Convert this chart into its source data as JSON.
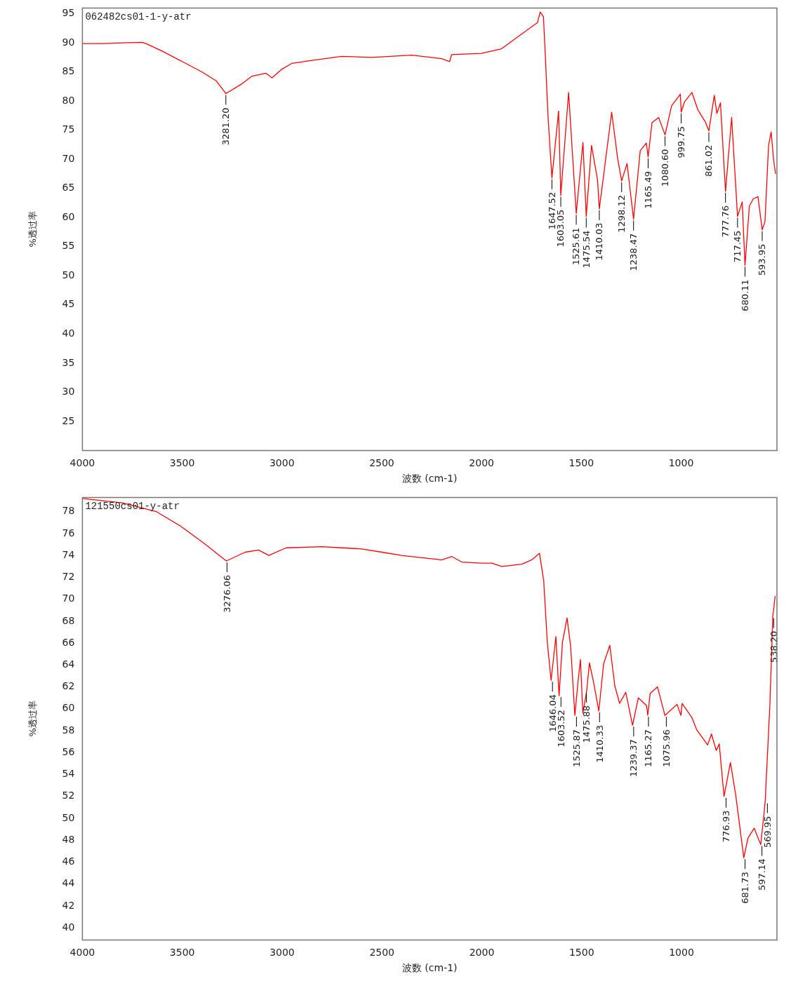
{
  "chart_data": [
    {
      "type": "line",
      "title": "062482cs01-1-y-atr",
      "xlabel": "波数 (cm-1)",
      "ylabel": "%透过率",
      "xlim": [
        4000,
        520
      ],
      "xticks": [
        4000,
        3500,
        3000,
        2500,
        2000,
        1500,
        1000
      ],
      "ylim": [
        20,
        96
      ],
      "yticks": [
        25,
        30,
        35,
        40,
        45,
        50,
        55,
        60,
        65,
        70,
        75,
        80,
        85,
        90,
        95
      ],
      "series": [
        {
          "color": "#ff0000",
          "x": [
            4000,
            3900,
            3800,
            3700,
            3676,
            3600,
            3500,
            3400,
            3330,
            3281.2,
            3200,
            3150,
            3080,
            3050,
            3000,
            2950,
            2850,
            2700,
            2550,
            2350,
            2200,
            2160,
            2150,
            2000,
            1900,
            1800,
            1720,
            1706,
            1690,
            1680,
            1667,
            1647.52,
            1614,
            1603.05,
            1564,
            1525.61,
            1492,
            1475.54,
            1449,
            1419,
            1410.03,
            1348,
            1318,
            1298.12,
            1271,
            1238.47,
            1205,
            1174,
            1165.49,
            1146,
            1113,
            1080.6,
            1048,
            1004,
            999.75,
            983,
            946,
            916,
            880,
            861.02,
            834,
            821,
            803,
            777.76,
            747,
            717.45,
            694,
            680.11,
            658,
            639,
            615,
            593.95,
            580,
            562,
            549,
            537,
            527
          ],
          "values": [
            89.9,
            89.9,
            90,
            90.1,
            89.8,
            88.6,
            86.8,
            85,
            83.5,
            81.3,
            83,
            84.3,
            84.8,
            84,
            85.5,
            86.5,
            87,
            87.7,
            87.5,
            87.9,
            87.3,
            86.8,
            88,
            88.2,
            89,
            91.5,
            93.5,
            95.3,
            94.5,
            87.4,
            77.4,
            66.8,
            78.3,
            63.8,
            81.5,
            60.7,
            72.9,
            60.2,
            72.4,
            66.5,
            61.5,
            78.1,
            70.1,
            66.3,
            69.3,
            59.7,
            71.5,
            72.8,
            70.4,
            76.3,
            77.2,
            74.2,
            79.2,
            81.2,
            78.1,
            79.9,
            81.5,
            78.5,
            76.5,
            74.9,
            81,
            77.9,
            79.7,
            64.5,
            77.2,
            60.2,
            62.7,
            51.8,
            62,
            63.2,
            63.6,
            57.9,
            59.3,
            72.4,
            74.7,
            70,
            67.5
          ]
        }
      ],
      "annotations": [
        {
          "text": "3281.20",
          "x": 3281.2,
          "y": 81.3
        },
        {
          "text": "1647.52",
          "x": 1647.52,
          "y": 66.8
        },
        {
          "text": "1603.05",
          "x": 1603.05,
          "y": 63.8
        },
        {
          "text": "1525.61",
          "x": 1525.61,
          "y": 60.7
        },
        {
          "text": "1475.54",
          "x": 1475.54,
          "y": 60.2
        },
        {
          "text": "1410.03",
          "x": 1410.03,
          "y": 61.5
        },
        {
          "text": "1298.12",
          "x": 1298.12,
          "y": 66.3
        },
        {
          "text": "1238.47",
          "x": 1238.47,
          "y": 59.7
        },
        {
          "text": "1165.49",
          "x": 1165.49,
          "y": 70.4
        },
        {
          "text": "1080.60",
          "x": 1080.6,
          "y": 74.2
        },
        {
          "text": "999.75",
          "x": 999.75,
          "y": 78.1
        },
        {
          "text": "861.02",
          "x": 861.02,
          "y": 74.9
        },
        {
          "text": "777.76",
          "x": 777.76,
          "y": 64.5
        },
        {
          "text": "717.45",
          "x": 717.45,
          "y": 60.2
        },
        {
          "text": "680.11",
          "x": 680.11,
          "y": 51.8
        },
        {
          "text": "593.95",
          "x": 593.95,
          "y": 57.9
        }
      ]
    },
    {
      "type": "line",
      "title": "121550cs01-y-atr",
      "xlabel": "波数 (cm-1)",
      "ylabel": "%透过率",
      "xlim": [
        4000,
        522
      ],
      "xticks": [
        4000,
        3500,
        3000,
        2500,
        2000,
        1500,
        1000
      ],
      "ylim": [
        38.9,
        79.3
      ],
      "yticks": [
        40,
        42,
        44,
        46,
        48,
        50,
        52,
        54,
        56,
        58,
        60,
        62,
        64,
        66,
        68,
        70,
        72,
        74,
        76,
        78
      ],
      "series": [
        {
          "color": "#ff0000",
          "x": [
            4000,
            3800,
            3629,
            3510,
            3390,
            3279,
            3186,
            3118,
            3066,
            2980,
            2800,
            2700,
            2600,
            2500,
            2400,
            2300,
            2200,
            2150,
            2100,
            2000,
            1950,
            1900,
            1800,
            1750,
            1711,
            1690,
            1672,
            1653,
            1629,
            1613,
            1596,
            1573,
            1555,
            1534,
            1518,
            1506,
            1494,
            1475,
            1461,
            1439,
            1414,
            1390,
            1359,
            1334,
            1310,
            1279,
            1245,
            1216,
            1175,
            1169,
            1157,
            1120,
            1083,
            1022,
            1003,
            997,
            948,
            924,
            869,
            850,
            826,
            811,
            787,
            755,
            729,
            688,
            667,
            636,
            623,
            603,
            581,
            557,
            543,
            531
          ],
          "values": [
            79.2,
            78.8,
            78,
            76.7,
            75.1,
            73.5,
            74.3,
            74.5,
            74,
            74.7,
            74.8,
            74.7,
            74.6,
            74.3,
            74,
            73.8,
            73.6,
            73.9,
            73.4,
            73.3,
            73.3,
            73,
            73.2,
            73.6,
            74.2,
            71.7,
            66.1,
            62.6,
            66.6,
            61.2,
            66.1,
            68.3,
            65.7,
            59.4,
            62.5,
            64.5,
            59.6,
            61.6,
            64.2,
            62.3,
            59.8,
            64.1,
            65.8,
            62.1,
            60.5,
            61.5,
            58.5,
            61,
            60.3,
            59.4,
            61.4,
            62,
            59.4,
            60.4,
            59.4,
            60.5,
            59.2,
            58.1,
            56.7,
            57.7,
            56.2,
            56.8,
            52,
            55.1,
            52.2,
            46.4,
            48.2,
            49.1,
            48.5,
            47.6,
            51.5,
            60.5,
            68.4,
            70.3
          ]
        }
      ],
      "annotations": [
        {
          "text": "3276.06",
          "x": 3276.06,
          "y": 73.5
        },
        {
          "text": "1646.04",
          "x": 1646.04,
          "y": 62.6
        },
        {
          "text": "1603.52",
          "x": 1603.52,
          "y": 61.2
        },
        {
          "text": "1525.87",
          "x": 1525.87,
          "y": 59.4
        },
        {
          "text": "1475.88",
          "x": 1475.88,
          "y": 61.6
        },
        {
          "text": "1410.33",
          "x": 1410.33,
          "y": 59.8
        },
        {
          "text": "1239.37",
          "x": 1239.37,
          "y": 58.5
        },
        {
          "text": "1165.27",
          "x": 1165.27,
          "y": 59.4
        },
        {
          "text": "1075.96",
          "x": 1075.96,
          "y": 59.4
        },
        {
          "text": "776.93",
          "x": 776.93,
          "y": 52
        },
        {
          "text": "681.73",
          "x": 681.73,
          "y": 46.4
        },
        {
          "text": "597.14",
          "x": 597.14,
          "y": 47.6
        },
        {
          "text": "569.95",
          "x": 569.95,
          "y": 51.5
        },
        {
          "text": "538.20",
          "x": 538.2,
          "y": 68.4
        }
      ]
    }
  ]
}
